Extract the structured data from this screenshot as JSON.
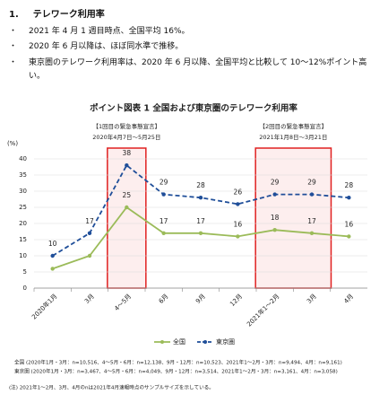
{
  "heading": {
    "number": "1.",
    "title": "テレワーク利用率"
  },
  "bullets": [
    "2021 年 4 月 1 週目時点、全国平均 16%。",
    "2020 年 6 月以降は、ほぼ同水準で推移。",
    "東京圏のテレワーク利用率は、2020 年 6 月以降、全国平均と比較して 10～12%ポイント高い。"
  ],
  "chart_data": {
    "type": "line",
    "title": "ポイント図表 1 全国および東京圏のテレワーク利用率",
    "annotations": [
      {
        "title": "【1回目の緊急事態宣言】",
        "text": "2020年4月7日～5月25日"
      },
      {
        "title": "【2回目の緊急事態宣言】",
        "text": "2021年1月8日～3月21日"
      }
    ],
    "y_label": "(%)",
    "categories": [
      "2020年1月",
      "3月",
      "4～5月",
      "6月",
      "9月",
      "12月",
      "2021年1～2月",
      "3月",
      "4月"
    ],
    "series": [
      {
        "name": "全国",
        "color": "#9bbb59",
        "values": [
          6,
          10,
          25,
          17,
          17,
          16,
          18,
          17,
          16
        ],
        "value_labels": [
          null,
          null,
          25,
          17,
          17,
          16,
          18,
          17,
          16
        ]
      },
      {
        "name": "東京圏",
        "color": "#1f4e99",
        "values": [
          10,
          17,
          38,
          29,
          28,
          26,
          29,
          29,
          28
        ]
      }
    ],
    "ylim": [
      0,
      40
    ],
    "yticks": [
      0,
      5,
      10,
      15,
      20,
      25,
      30,
      35,
      40
    ],
    "grid": true,
    "notes": [
      "全国 (2020年1月・3月：n=10,516、4～5月・6月：n=12,138、9月・12月：n=10,523、2021年1～2月・3月：n=9,494、4月：n=9,161)",
      "東京圏 (2020年1月・3月：n=3,467、4～5月・6月：n=4,049、9月・12月：n=3,514、2021年1～2月・3月：n=3,161、4月：n=3,058)",
      "(注) 2021年1～2月、3月、4月のnは2021年4月速報時点のサンプルサイズを示している。"
    ]
  }
}
